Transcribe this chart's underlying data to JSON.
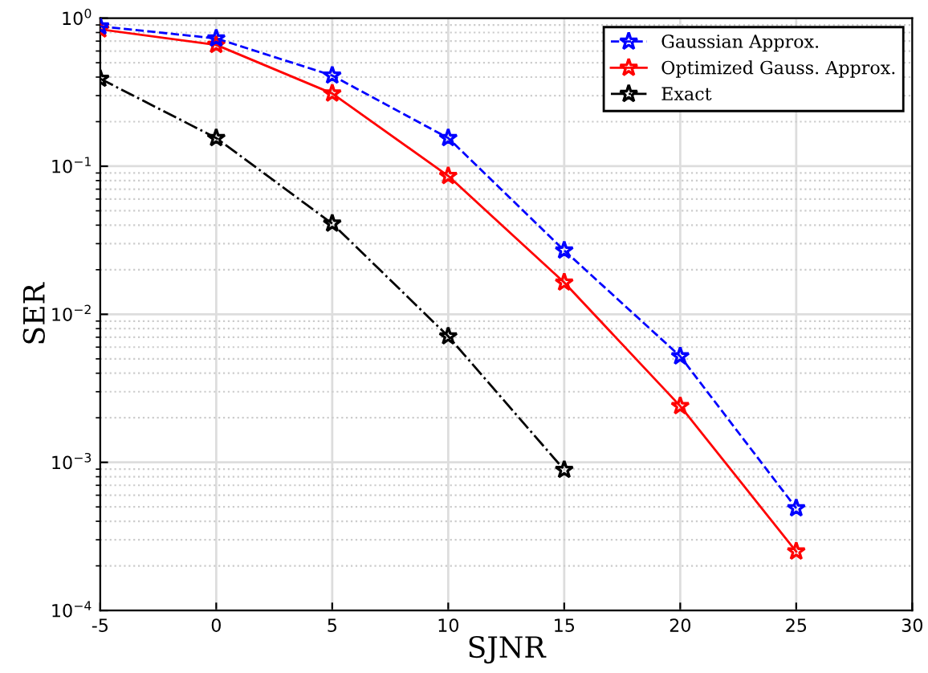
{
  "chart_data": {
    "type": "line",
    "xlabel": "SJNR",
    "ylabel": "SER",
    "x": [
      -5,
      0,
      5,
      10,
      15,
      20,
      25
    ],
    "series": [
      {
        "name": "Gaussian Approx.",
        "color": "#0000ff",
        "values": [
          0.88,
          0.73,
          0.41,
          0.155,
          0.027,
          0.0052,
          0.00049
        ],
        "line_style": "dashed"
      },
      {
        "name": "Optimized Gauss. Approx.",
        "color": "#ff0000",
        "values": [
          0.84,
          0.66,
          0.31,
          0.086,
          0.0164,
          0.0024,
          0.00025
        ],
        "line_style": "solid"
      },
      {
        "name": "Exact",
        "color": "#000000",
        "values": [
          0.39,
          0.155,
          0.041,
          0.0071,
          0.00089,
          null,
          null
        ],
        "line_style": "dashdot"
      }
    ],
    "log": "y",
    "xlim": [
      -5,
      30
    ],
    "xticks": [
      -5,
      0,
      5,
      10,
      15,
      20,
      25,
      30
    ],
    "ylim": [
      0.0001,
      1
    ],
    "yticks": [
      {
        "value": 0.0001,
        "label": "10$^{−4}$"
      },
      {
        "value": 0.001,
        "label": "10$^{−3}$"
      },
      {
        "value": 0.01,
        "label": "10$^{−2}$"
      },
      {
        "value": 0.1,
        "label": "10$^{−1}$"
      },
      {
        "value": 1,
        "label": "10$^{0}$"
      }
    ],
    "grid": true,
    "legend": "top right",
    "marker": "star"
  }
}
